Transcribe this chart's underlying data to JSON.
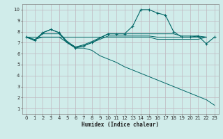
{
  "bg_color": "#d0ecea",
  "grid_color": "#c0b8c0",
  "line_color": "#006666",
  "xlabel": "Humidex (Indice chaleur)",
  "xlim": [
    -0.5,
    23.5
  ],
  "ylim": [
    0.5,
    10.5
  ],
  "xticks": [
    0,
    1,
    2,
    3,
    4,
    5,
    6,
    7,
    8,
    9,
    10,
    11,
    12,
    13,
    14,
    15,
    16,
    17,
    18,
    19,
    20,
    21,
    22,
    23
  ],
  "yticks": [
    1,
    2,
    3,
    4,
    5,
    6,
    7,
    8,
    9,
    10
  ],
  "line1_x": [
    0,
    1,
    2,
    3,
    4,
    5,
    6,
    7,
    8,
    10,
    11,
    12,
    13,
    14,
    15,
    16,
    17,
    18,
    19,
    20,
    21,
    22,
    23
  ],
  "line1_y": [
    7.5,
    7.2,
    7.9,
    8.2,
    7.9,
    7.0,
    6.5,
    6.7,
    7.0,
    7.8,
    7.8,
    7.8,
    8.5,
    10.0,
    10.0,
    9.7,
    9.5,
    8.0,
    7.5,
    7.5,
    7.6,
    6.9,
    7.5
  ],
  "line2_x": [
    0,
    1,
    2,
    3,
    4,
    5,
    6,
    7,
    8,
    10,
    11,
    12,
    13,
    14,
    15,
    16,
    17,
    18,
    19,
    20,
    21,
    22
  ],
  "line2_y": [
    7.5,
    7.2,
    7.9,
    8.2,
    7.9,
    7.1,
    6.6,
    6.8,
    7.1,
    7.8,
    7.8,
    7.8,
    7.8,
    7.8,
    7.8,
    7.8,
    7.8,
    7.8,
    7.6,
    7.6,
    7.6,
    7.5
  ],
  "line3_x": [
    0,
    1,
    2,
    3,
    4,
    5,
    6,
    7,
    8,
    10,
    11,
    12,
    13,
    14,
    15,
    16,
    17,
    18,
    19,
    20,
    21,
    22
  ],
  "line3_y": [
    7.5,
    7.2,
    7.8,
    7.8,
    7.8,
    7.0,
    6.6,
    6.7,
    7.0,
    7.6,
    7.6,
    7.6,
    7.6,
    7.6,
    7.6,
    7.5,
    7.5,
    7.5,
    7.5,
    7.5,
    7.5,
    7.5
  ],
  "line4_x": [
    0,
    10,
    11,
    12,
    13,
    14,
    15,
    16,
    17,
    18,
    19,
    20,
    21,
    22
  ],
  "line4_y": [
    7.5,
    7.5,
    7.5,
    7.5,
    7.5,
    7.5,
    7.5,
    7.3,
    7.3,
    7.3,
    7.3,
    7.3,
    7.3,
    7.5
  ],
  "line5_x": [
    0,
    1,
    2,
    3,
    4,
    5,
    6,
    7,
    8,
    9,
    10,
    11,
    12,
    13,
    14,
    15,
    16,
    17,
    18,
    19,
    20,
    21,
    22,
    23
  ],
  "line5_y": [
    7.5,
    7.3,
    7.5,
    7.5,
    7.5,
    7.0,
    6.5,
    6.5,
    6.3,
    5.8,
    5.5,
    5.2,
    4.8,
    4.5,
    4.2,
    3.9,
    3.6,
    3.3,
    3.0,
    2.7,
    2.4,
    2.1,
    1.8,
    1.3
  ]
}
